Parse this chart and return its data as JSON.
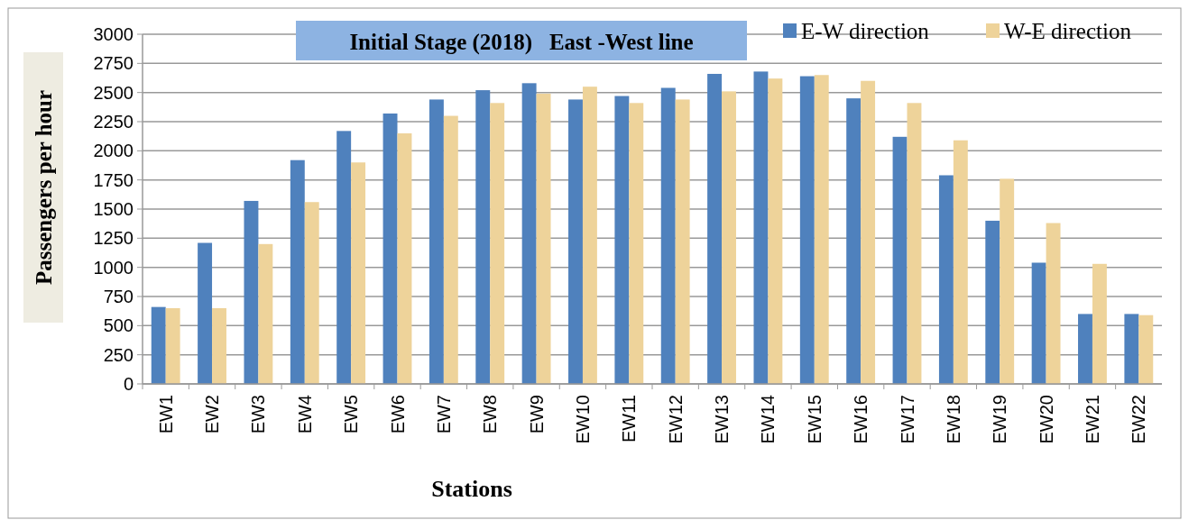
{
  "chart_data": {
    "type": "bar",
    "title": "Initial Stage (2018)   East -West line",
    "xlabel": "Stations",
    "ylabel": "Passengers per hour",
    "categories": [
      "EW1",
      "EW2",
      "EW3",
      "EW4",
      "EW5",
      "EW6",
      "EW7",
      "EW8",
      "EW9",
      "EW10",
      "EW11",
      "EW12",
      "EW13",
      "EW14",
      "EW15",
      "EW16",
      "EW17",
      "EW18",
      "EW19",
      "EW20",
      "EW21",
      "EW22"
    ],
    "series": [
      {
        "name": "E-W direction",
        "color": "#4f81bd",
        "values": [
          660,
          1210,
          1570,
          1920,
          2170,
          2320,
          2440,
          2520,
          2580,
          2440,
          2470,
          2540,
          2660,
          2680,
          2640,
          2450,
          2120,
          1790,
          1400,
          1040,
          600,
          600
        ]
      },
      {
        "name": "W-E direction",
        "color": "#eed39a",
        "values": [
          650,
          650,
          1200,
          1560,
          1900,
          2150,
          2300,
          2410,
          2490,
          2550,
          2410,
          2440,
          2510,
          2620,
          2650,
          2600,
          2410,
          2090,
          1760,
          1380,
          1030,
          590
        ]
      }
    ],
    "ylim": [
      0,
      3000
    ],
    "yticks": [
      0,
      250,
      500,
      750,
      1000,
      1250,
      1500,
      1750,
      2000,
      2250,
      2500,
      2750,
      3000
    ],
    "grid": "y",
    "legend": "top right"
  }
}
